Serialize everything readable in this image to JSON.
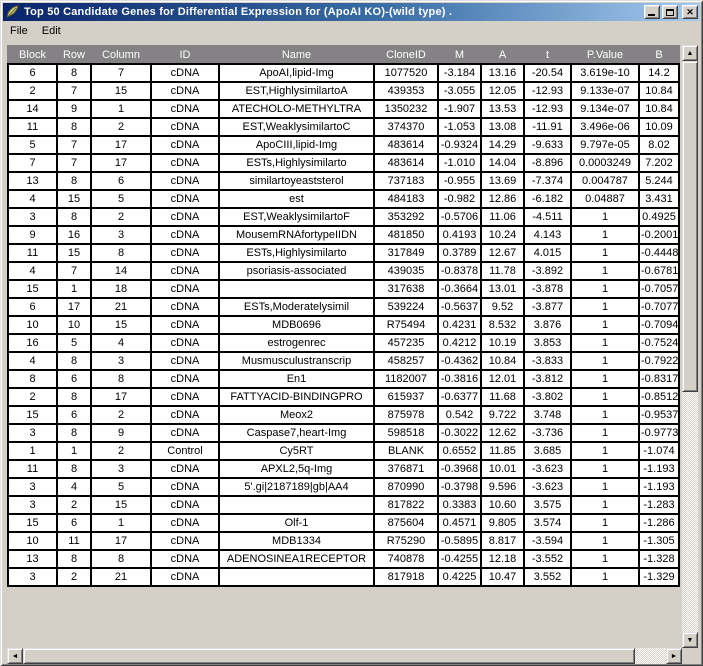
{
  "window": {
    "title": "Top 50 Candidate Genes for Differential Expression for (ApoAI KO)-(wild type) .",
    "icon": "tk-feather-icon",
    "controls": {
      "minimize_label": "minimize",
      "maximize_label": "maximize",
      "close_label": "close"
    }
  },
  "menu": {
    "items": [
      {
        "label": "File"
      },
      {
        "label": "Edit"
      }
    ]
  },
  "colors": {
    "titlebar_gradient_start": "#0a246a",
    "titlebar_gradient_end": "#a6caf0",
    "chrome": "#d4d0c8",
    "header_bg": "#848284",
    "cell_bg": "#ffffff",
    "grid_border": "#000000"
  },
  "table": {
    "columns": [
      "Block",
      "Row",
      "Column",
      "ID",
      "Name",
      "CloneID",
      "M",
      "A",
      "t",
      "P.Value",
      "B"
    ],
    "rows": [
      [
        "6",
        "8",
        "7",
        "cDNA",
        "ApoAI,lipid-Img",
        "1077520",
        "-3.184",
        "13.16",
        "-20.54",
        "3.619e-10",
        "14.2"
      ],
      [
        "2",
        "7",
        "15",
        "cDNA",
        "EST,HighlysimilartoA",
        "439353",
        "-3.055",
        "12.05",
        "-12.93",
        "9.133e-07",
        "10.84"
      ],
      [
        "14",
        "9",
        "1",
        "cDNA",
        "ATECHOLO-METHYLTRA",
        "1350232",
        "-1.907",
        "13.53",
        "-12.93",
        "9.134e-07",
        "10.84"
      ],
      [
        "11",
        "8",
        "2",
        "cDNA",
        "EST,WeaklysimilartoC",
        "374370",
        "-1.053",
        "13.08",
        "-11.91",
        "3.496e-06",
        "10.09"
      ],
      [
        "5",
        "7",
        "17",
        "cDNA",
        "ApoCIII,lipid-Img",
        "483614",
        "-0.9324",
        "14.29",
        "-9.633",
        "9.797e-05",
        "8.02"
      ],
      [
        "7",
        "7",
        "17",
        "cDNA",
        "ESTs,Highlysimilarto",
        "483614",
        "-1.010",
        "14.04",
        "-8.896",
        "0.0003249",
        "7.202"
      ],
      [
        "13",
        "8",
        "6",
        "cDNA",
        "similartoyeaststerol",
        "737183",
        "-0.955",
        "13.69",
        "-7.374",
        "0.004787",
        "5.244"
      ],
      [
        "4",
        "15",
        "5",
        "cDNA",
        "est",
        "484183",
        "-0.982",
        "12.86",
        "-6.182",
        "0.04887",
        "3.431"
      ],
      [
        "3",
        "8",
        "2",
        "cDNA",
        "EST,WeaklysimilartoF",
        "353292",
        "-0.5706",
        "11.06",
        "-4.511",
        "1",
        "0.4925"
      ],
      [
        "9",
        "16",
        "3",
        "cDNA",
        "MousemRNAfortypeIIDN",
        "481850",
        "0.4193",
        "10.24",
        "4.143",
        "1",
        "-0.2001"
      ],
      [
        "11",
        "15",
        "8",
        "cDNA",
        "ESTs,Highlysimilarto",
        "317849",
        "0.3789",
        "12.67",
        "4.015",
        "1",
        "-0.4448"
      ],
      [
        "4",
        "7",
        "14",
        "cDNA",
        "psoriasis-associated",
        "439035",
        "-0.8378",
        "11.78",
        "-3.892",
        "1",
        "-0.6781"
      ],
      [
        "15",
        "1",
        "18",
        "cDNA",
        "",
        "317638",
        "-0.3664",
        "13.01",
        "-3.878",
        "1",
        "-0.7057"
      ],
      [
        "6",
        "17",
        "21",
        "cDNA",
        "ESTs,Moderatelysimil",
        "539224",
        "-0.5637",
        "9.52",
        "-3.877",
        "1",
        "-0.7077"
      ],
      [
        "10",
        "10",
        "15",
        "cDNA",
        "MDB0696",
        "R75494",
        "0.4231",
        "8.532",
        "3.876",
        "1",
        "-0.7094"
      ],
      [
        "16",
        "5",
        "4",
        "cDNA",
        "estrogenrec",
        "457235",
        "0.4212",
        "10.19",
        "3.853",
        "1",
        "-0.7524"
      ],
      [
        "4",
        "8",
        "3",
        "cDNA",
        "Musmusculustranscrip",
        "458257",
        "-0.4362",
        "10.84",
        "-3.833",
        "1",
        "-0.7922"
      ],
      [
        "8",
        "6",
        "8",
        "cDNA",
        "En1",
        "1182007",
        "-0.3816",
        "12.01",
        "-3.812",
        "1",
        "-0.8317"
      ],
      [
        "2",
        "8",
        "17",
        "cDNA",
        "FATTYACID-BINDINGPRO",
        "615937",
        "-0.6377",
        "11.68",
        "-3.802",
        "1",
        "-0.8512"
      ],
      [
        "15",
        "6",
        "2",
        "cDNA",
        "Meox2",
        "875978",
        "0.542",
        "9.722",
        "3.748",
        "1",
        "-0.9537"
      ],
      [
        "3",
        "8",
        "9",
        "cDNA",
        "Caspase7,heart-Img",
        "598518",
        "-0.3022",
        "12.62",
        "-3.736",
        "1",
        "-0.9773"
      ],
      [
        "1",
        "1",
        "2",
        "Control",
        "Cy5RT",
        "BLANK",
        "0.6552",
        "11.85",
        "3.685",
        "1",
        "-1.074"
      ],
      [
        "11",
        "8",
        "3",
        "cDNA",
        "APXL2,5q-Img",
        "376871",
        "-0.3968",
        "10.01",
        "-3.623",
        "1",
        "-1.193"
      ],
      [
        "3",
        "4",
        "5",
        "cDNA",
        "5'.gi|2187189|gb|AA4",
        "870990",
        "-0.3798",
        "9.596",
        "-3.623",
        "1",
        "-1.193"
      ],
      [
        "3",
        "2",
        "15",
        "cDNA",
        "",
        "817822",
        "0.3383",
        "10.60",
        "3.575",
        "1",
        "-1.283"
      ],
      [
        "15",
        "6",
        "1",
        "cDNA",
        "Olf-1",
        "875604",
        "0.4571",
        "9.805",
        "3.574",
        "1",
        "-1.286"
      ],
      [
        "10",
        "11",
        "17",
        "cDNA",
        "MDB1334",
        "R75290",
        "-0.5895",
        "8.817",
        "-3.594",
        "1",
        "-1.305"
      ],
      [
        "13",
        "8",
        "8",
        "cDNA",
        "ADENOSINEA1RECEPTOR",
        "740878",
        "-0.4255",
        "12.18",
        "-3.552",
        "1",
        "-1.328"
      ],
      [
        "3",
        "2",
        "21",
        "cDNA",
        "",
        "817918",
        "0.4225",
        "10.47",
        "3.552",
        "1",
        "-1.329"
      ]
    ]
  },
  "scrollbars": {
    "vertical": {
      "up_arrow": "▲",
      "down_arrow": "▼"
    },
    "horizontal": {
      "left_arrow": "◄",
      "right_arrow": "►"
    }
  }
}
